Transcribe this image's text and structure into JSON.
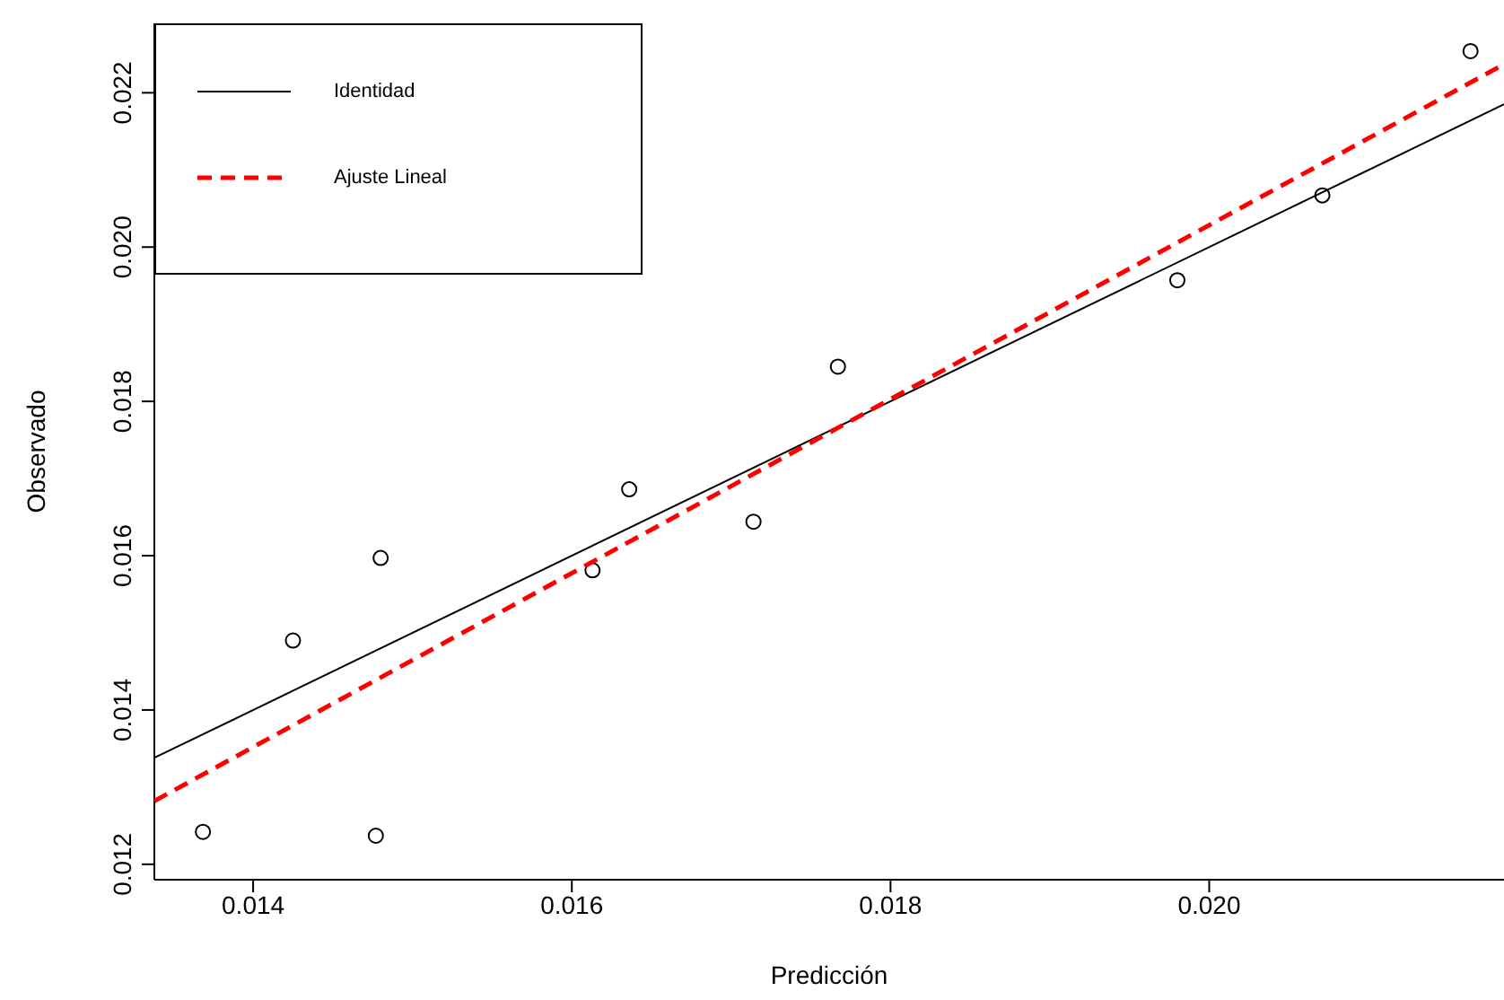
{
  "chart_data": {
    "type": "scatter",
    "xlabel": "Predicción",
    "ylabel": "Observado",
    "xlim": [
      0.01338,
      0.02185
    ],
    "ylim": [
      0.0118,
      0.0229
    ],
    "xticks": [
      0.014,
      0.016,
      0.018,
      {
        "value": 0.02,
        "label": "0.020"
      }
    ],
    "yticks": [
      0.012,
      0.014,
      0.016,
      0.018,
      {
        "value": 0.02,
        "label": "0.020"
      },
      0.022
    ],
    "grid": false,
    "legend": "top left",
    "marker": "circle",
    "series": [
      {
        "color": "#000000",
        "x": [
          0.013685,
          0.01425,
          0.01477,
          0.0148,
          0.01613,
          0.01636,
          0.01714,
          0.01767,
          0.0198,
          0.02071,
          0.02164
        ],
        "values": [
          0.01242,
          0.0149,
          0.01237,
          0.01597,
          0.01581,
          0.01686,
          0.01644,
          0.01845,
          0.01957,
          0.02067,
          0.02254
        ]
      },
      {
        "type": "line",
        "name": "Identidad",
        "color": "#000000",
        "line_style": "solid",
        "marker": "none",
        "x": [
          0.01338,
          0.02185
        ],
        "values": [
          0.01338,
          0.02185
        ]
      },
      {
        "type": "line",
        "name": "Ajuste Lineal",
        "color": "#ff0000",
        "line_style": "dashed",
        "marker": "none",
        "x": [
          0.01338,
          0.02185
        ],
        "values": [
          0.01282,
          0.02237
        ]
      }
    ]
  }
}
